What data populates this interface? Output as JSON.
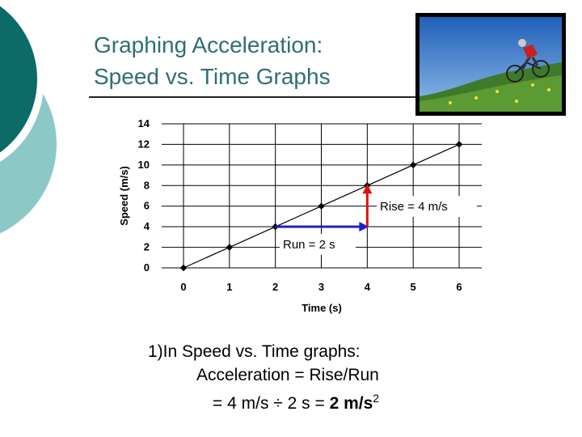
{
  "slide": {
    "title_line1": "Graphing Acceleration:",
    "title_line2": "Speed vs. Time Graphs",
    "photo_icon": "cyclist-photo",
    "colors": {
      "title": "#2e6f73",
      "dark_teal": "#0b6b66",
      "light_teal": "#8cc9c6",
      "rise": "#e01010",
      "run": "#2020c8"
    }
  },
  "chart_data": {
    "type": "line",
    "xlabel": "Time (s)",
    "ylabel": "Speed (m/s)",
    "xlim": [
      0,
      6
    ],
    "ylim": [
      0,
      14
    ],
    "x_ticks": [
      "0",
      "1",
      "2",
      "3",
      "4",
      "5",
      "6"
    ],
    "y_ticks": [
      "0",
      "2",
      "4",
      "6",
      "8",
      "10",
      "12",
      "14"
    ],
    "grid": true,
    "series": [
      {
        "x": [
          0,
          1,
          2,
          3,
          4,
          5,
          6
        ],
        "y": [
          0,
          2,
          4,
          6,
          8,
          10,
          12
        ]
      }
    ],
    "annotations": {
      "run": {
        "label": "Run = 2 s",
        "from": [
          2,
          4
        ],
        "to": [
          4,
          4
        ]
      },
      "rise": {
        "label": "Rise = 4 m/s",
        "from": [
          4,
          4
        ],
        "to": [
          4,
          8
        ]
      }
    }
  },
  "body": {
    "line1": "1)In Speed vs. Time graphs:",
    "line2": "Acceleration = Rise/Run",
    "line3_prefix": "= 4 m/s ÷ 2 s = ",
    "line3_result": "2 m/s",
    "line3_exp": "2"
  }
}
